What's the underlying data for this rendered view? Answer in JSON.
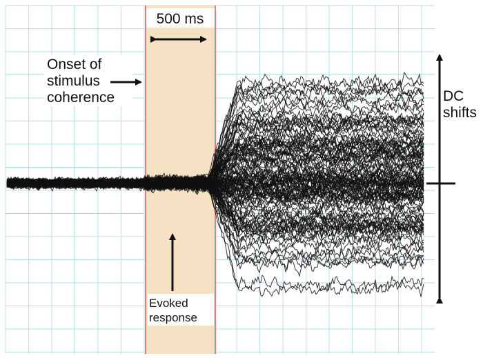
{
  "colors": {
    "grid": "#b8dde8",
    "window_fill": "#f5e1c4",
    "window_edge": "#e87a7a",
    "trace": "#111111",
    "background": "#ffffff"
  },
  "labels": {
    "duration": "500 ms",
    "onset_line1": "Onset of",
    "onset_line2": "stimulus",
    "onset_line3": "coherence",
    "dc_line1": "DC",
    "dc_line2": "shifts",
    "evoked_line1": "Evoked",
    "evoked_line2": "response"
  },
  "icons": {
    "duration_arrow": "double-headed-horizontal-arrow",
    "onset_arrow": "right-arrow",
    "evoked_arrow": "up-arrow",
    "dc_arrow": "double-headed-vertical-arrow"
  }
}
